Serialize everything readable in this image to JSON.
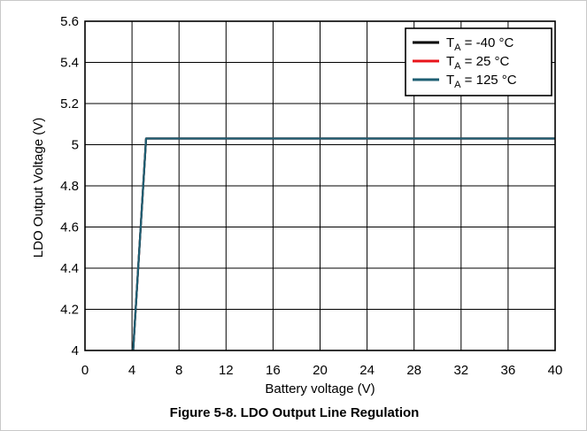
{
  "caption": "Figure 5-8. LDO Output Line Regulation",
  "chart_data": {
    "type": "line",
    "title": "",
    "xlabel": "Battery voltage (V)",
    "ylabel": "LDO Output Voltage (V)",
    "xlim": [
      0,
      40
    ],
    "ylim": [
      4,
      5.6
    ],
    "xticks": [
      0,
      4,
      8,
      12,
      16,
      20,
      24,
      28,
      32,
      36,
      40
    ],
    "yticks": [
      4,
      4.2,
      4.4,
      4.6,
      4.8,
      5,
      5.2,
      5.4,
      5.6
    ],
    "xtick_labels": [
      "0",
      "4",
      "8",
      "12",
      "16",
      "20",
      "24",
      "28",
      "32",
      "36",
      "40"
    ],
    "ytick_labels": [
      "4",
      "4.2",
      "4.4",
      "4.6",
      "4.8",
      "5",
      "5.2",
      "5.4",
      "5.6"
    ],
    "grid": true,
    "legend_position": "top-right",
    "series": [
      {
        "name_prefix": "T",
        "name_sub": "A",
        "name_suffix": " = -40 °C",
        "color": "#000000",
        "x": [
          4.1,
          5.2,
          8,
          12,
          16,
          20,
          24,
          28,
          32,
          36,
          40
        ],
        "y": [
          4.0,
          5.03,
          5.03,
          5.03,
          5.03,
          5.03,
          5.03,
          5.03,
          5.03,
          5.03,
          5.03
        ]
      },
      {
        "name_prefix": "T",
        "name_sub": "A",
        "name_suffix": " = 25 °C",
        "color": "#e8141b",
        "x": [
          4.1,
          5.2,
          8,
          12,
          16,
          20,
          24,
          28,
          32,
          36,
          40
        ],
        "y": [
          4.0,
          5.03,
          5.03,
          5.03,
          5.03,
          5.03,
          5.03,
          5.03,
          5.03,
          5.03,
          5.03
        ]
      },
      {
        "name_prefix": "T",
        "name_sub": "A",
        "name_suffix": " = 125 °C",
        "color": "#1e5f73",
        "x": [
          4.1,
          5.2,
          8,
          12,
          16,
          20,
          24,
          28,
          32,
          36,
          40
        ],
        "y": [
          4.0,
          5.03,
          5.03,
          5.03,
          5.03,
          5.03,
          5.03,
          5.03,
          5.03,
          5.03,
          5.03
        ]
      }
    ]
  }
}
